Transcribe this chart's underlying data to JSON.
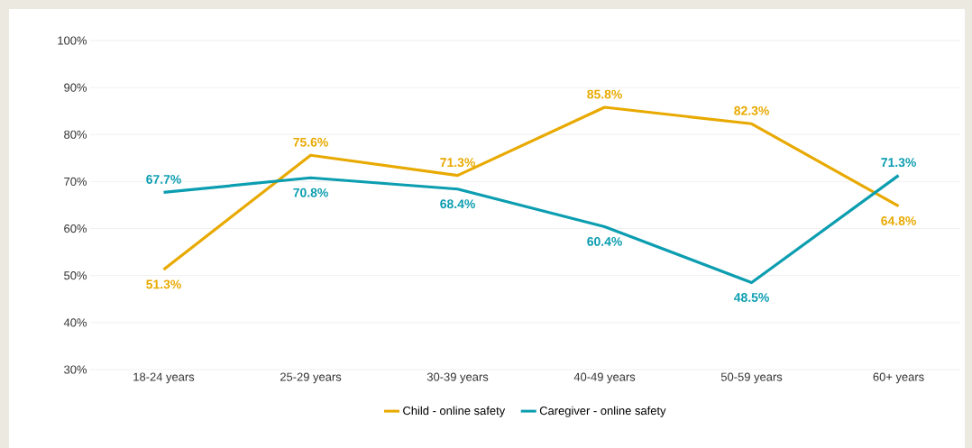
{
  "chart_data": {
    "type": "line",
    "categories": [
      "18-24 years",
      "25-29 years",
      "30-39 years",
      "40-49 years",
      "50-59 years",
      "60+ years"
    ],
    "series": [
      {
        "name": "Child - online safety",
        "color": "#e8a900",
        "values": [
          51.3,
          75.6,
          71.3,
          85.8,
          82.3,
          64.8
        ],
        "value_labels": [
          "51.3%",
          "75.6%",
          "71.3%",
          "85.8%",
          "82.3%",
          "64.8%"
        ]
      },
      {
        "name": "Caregiver - online safety",
        "color": "#0b9db0",
        "values": [
          67.7,
          70.8,
          68.4,
          60.4,
          48.5,
          71.3
        ],
        "value_labels": [
          "67.7%",
          "70.8%",
          "68.4%",
          "60.4%",
          "48.5%",
          "71.3%"
        ]
      }
    ],
    "ylim": [
      30,
      100
    ],
    "yticks": [
      {
        "value": 30,
        "label": "30%"
      },
      {
        "value": 40,
        "label": "40%"
      },
      {
        "value": 50,
        "label": "50%"
      },
      {
        "value": 60,
        "label": "60%"
      },
      {
        "value": 70,
        "label": "70%"
      },
      {
        "value": 80,
        "label": "80%"
      },
      {
        "value": 90,
        "label": "90%"
      },
      {
        "value": 100,
        "label": "100%"
      }
    ],
    "grid": "y",
    "legend": "bottom",
    "marker": "none",
    "line_style": "solid"
  }
}
